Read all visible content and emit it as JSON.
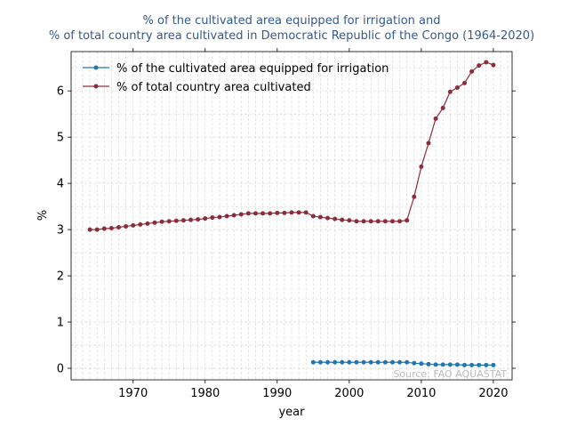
{
  "chart_data": {
    "type": "line",
    "title_line1": "% of the cultivated area equipped for irrigation and",
    "title_line2": "% of total country area cultivated in Democratic Republic of the Congo (1964-2020)",
    "xlabel": "year",
    "ylabel": "%",
    "xlim": [
      1961.4,
      2022.6
    ],
    "ylim": [
      -0.25,
      6.85
    ],
    "x_ticks": [
      1970,
      1980,
      1990,
      2000,
      2010,
      2020
    ],
    "y_ticks": [
      0,
      1,
      2,
      3,
      4,
      5,
      6
    ],
    "grid": true,
    "legend_position": "top-left",
    "source": "Source: FAO AQUASTAT",
    "series": [
      {
        "name": "% of the cultivated area equipped for irrigation",
        "color": "#1f77b4",
        "x": [
          1995,
          1996,
          1997,
          1998,
          1999,
          2000,
          2001,
          2002,
          2003,
          2004,
          2005,
          2006,
          2007,
          2008,
          2009,
          2010,
          2011,
          2012,
          2013,
          2014,
          2015,
          2016,
          2017,
          2018,
          2019,
          2020
        ],
        "y": [
          0.13,
          0.13,
          0.13,
          0.13,
          0.13,
          0.13,
          0.13,
          0.13,
          0.13,
          0.13,
          0.13,
          0.13,
          0.13,
          0.13,
          0.11,
          0.1,
          0.09,
          0.08,
          0.08,
          0.08,
          0.08,
          0.07,
          0.07,
          0.07,
          0.07,
          0.07
        ]
      },
      {
        "name": "% of total country area cultivated",
        "color": "#8c2d3c",
        "x": [
          1964,
          1965,
          1966,
          1967,
          1968,
          1969,
          1970,
          1971,
          1972,
          1973,
          1974,
          1975,
          1976,
          1977,
          1978,
          1979,
          1980,
          1981,
          1982,
          1983,
          1984,
          1985,
          1986,
          1987,
          1988,
          1989,
          1990,
          1991,
          1992,
          1993,
          1994,
          1995,
          1996,
          1997,
          1998,
          1999,
          2000,
          2001,
          2002,
          2003,
          2004,
          2005,
          2006,
          2007,
          2008,
          2009,
          2010,
          2011,
          2012,
          2013,
          2014,
          2015,
          2016,
          2017,
          2018,
          2019,
          2020
        ],
        "y": [
          3.0,
          3.0,
          3.02,
          3.03,
          3.05,
          3.07,
          3.09,
          3.11,
          3.13,
          3.15,
          3.17,
          3.18,
          3.19,
          3.2,
          3.21,
          3.22,
          3.24,
          3.26,
          3.27,
          3.29,
          3.31,
          3.33,
          3.35,
          3.35,
          3.35,
          3.35,
          3.36,
          3.36,
          3.37,
          3.37,
          3.37,
          3.29,
          3.27,
          3.25,
          3.23,
          3.21,
          3.2,
          3.18,
          3.18,
          3.18,
          3.18,
          3.18,
          3.18,
          3.18,
          3.2,
          3.71,
          4.36,
          4.87,
          5.4,
          5.63,
          5.98,
          6.07,
          6.17,
          6.42,
          6.55,
          6.62,
          6.56
        ]
      }
    ]
  }
}
